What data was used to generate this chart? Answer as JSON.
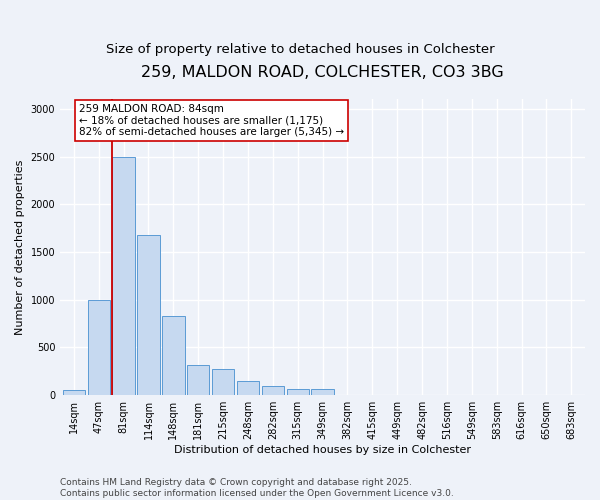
{
  "title_line1": "259, MALDON ROAD, COLCHESTER, CO3 3BG",
  "title_line2": "Size of property relative to detached houses in Colchester",
  "xlabel": "Distribution of detached houses by size in Colchester",
  "ylabel": "Number of detached properties",
  "categories": [
    "14sqm",
    "47sqm",
    "81sqm",
    "114sqm",
    "148sqm",
    "181sqm",
    "215sqm",
    "248sqm",
    "282sqm",
    "315sqm",
    "349sqm",
    "382sqm",
    "415sqm",
    "449sqm",
    "482sqm",
    "516sqm",
    "549sqm",
    "583sqm",
    "616sqm",
    "650sqm",
    "683sqm"
  ],
  "values": [
    50,
    1000,
    2500,
    1680,
    830,
    320,
    270,
    145,
    100,
    65,
    60,
    0,
    0,
    0,
    0,
    0,
    0,
    0,
    0,
    0,
    0
  ],
  "bar_color": "#c6d9f0",
  "bar_edge_color": "#5b9bd5",
  "vline_x_index": 2,
  "vline_color": "#cc0000",
  "annotation_text": "259 MALDON ROAD: 84sqm\n← 18% of detached houses are smaller (1,175)\n82% of semi-detached houses are larger (5,345) →",
  "annotation_box_facecolor": "#ffffff",
  "annotation_box_edgecolor": "#cc0000",
  "ylim": [
    0,
    3100
  ],
  "yticks": [
    0,
    500,
    1000,
    1500,
    2000,
    2500,
    3000
  ],
  "background_color": "#eef2f9",
  "grid_color": "#ffffff",
  "footer_line1": "Contains HM Land Registry data © Crown copyright and database right 2025.",
  "footer_line2": "Contains public sector information licensed under the Open Government Licence v3.0.",
  "title_fontsize": 11.5,
  "subtitle_fontsize": 9.5,
  "axis_label_fontsize": 8,
  "tick_fontsize": 7,
  "annotation_fontsize": 7.5,
  "footer_fontsize": 6.5
}
